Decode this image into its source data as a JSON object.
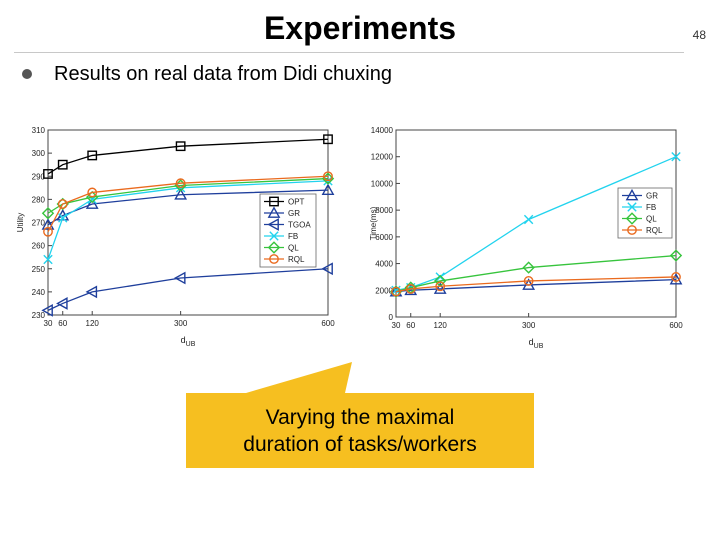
{
  "slide": {
    "title": "Experiments",
    "page_number": "48",
    "bullet": "Results on real data from Didi chuxing",
    "callout_line1": "Varying the maximal",
    "callout_line2": "duration of tasks/workers"
  },
  "colors": {
    "OPT": "#000000",
    "GR": "#1f3f9c",
    "TGOA": "#1f3f9c",
    "FB": "#22d3ee",
    "QL": "#37c43d",
    "RQL": "#ea6a1e",
    "callout": "#f6bf20"
  },
  "chart_data": [
    {
      "type": "line",
      "xlabel_main": "d",
      "xlabel_sub": "UB",
      "ylabel": "Utility",
      "x": [
        30,
        60,
        120,
        300,
        600
      ],
      "xticks": [
        "30",
        "60",
        "120",
        "300",
        "600"
      ],
      "ylim": [
        230,
        310
      ],
      "yticks": [
        "230",
        "240",
        "250",
        "260",
        "270",
        "280",
        "290",
        "300",
        "310"
      ],
      "legend_position": "center-right",
      "series": [
        {
          "name": "OPT",
          "marker": "square",
          "values": [
            291,
            295,
            299,
            303,
            306
          ]
        },
        {
          "name": "GR",
          "marker": "triangle-up",
          "values": [
            269,
            273,
            278,
            282,
            284
          ]
        },
        {
          "name": "TGOA",
          "marker": "triangle-left",
          "values": [
            232,
            235,
            240,
            246,
            250
          ]
        },
        {
          "name": "FB",
          "marker": "x",
          "values": [
            254,
            272,
            280,
            285,
            288
          ]
        },
        {
          "name": "QL",
          "marker": "diamond",
          "values": [
            274,
            278,
            281,
            286,
            289
          ]
        },
        {
          "name": "RQL",
          "marker": "circle",
          "values": [
            266,
            278,
            283,
            287,
            290
          ]
        }
      ]
    },
    {
      "type": "line",
      "xlabel_main": "d",
      "xlabel_sub": "UB",
      "ylabel": "Time(ms)",
      "x": [
        30,
        60,
        120,
        300,
        600
      ],
      "xticks": [
        "30",
        "60",
        "120",
        "300",
        "600"
      ],
      "ylim": [
        0,
        14000
      ],
      "yticks": [
        "0",
        "2000",
        "4000",
        "6000",
        "8000",
        "10000",
        "12000",
        "14000"
      ],
      "legend_position": "top-right",
      "series": [
        {
          "name": "GR",
          "marker": "triangle-up",
          "values": [
            1900,
            2000,
            2100,
            2400,
            2800
          ]
        },
        {
          "name": "FB",
          "marker": "x",
          "values": [
            2000,
            2200,
            3000,
            7300,
            12000
          ]
        },
        {
          "name": "QL",
          "marker": "diamond",
          "values": [
            1900,
            2200,
            2700,
            3700,
            4600
          ]
        },
        {
          "name": "RQL",
          "marker": "circle",
          "values": [
            1900,
            2100,
            2300,
            2700,
            3000
          ]
        }
      ]
    }
  ]
}
